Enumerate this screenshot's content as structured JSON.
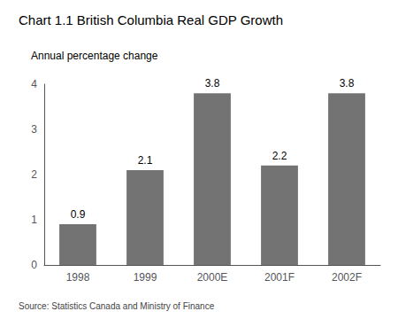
{
  "chart_data": {
    "type": "bar",
    "title": "Chart 1.1 British Columbia Real GDP Growth",
    "subtitle": "Annual percentage change",
    "source": "Source: Statistics Canada and Ministry of Finance",
    "categories": [
      "1998",
      "1999",
      "2000E",
      "2001F",
      "2002F"
    ],
    "values": [
      0.9,
      2.1,
      3.8,
      2.2,
      3.8
    ],
    "color": "#737373",
    "ylim": [
      0,
      4
    ],
    "yticks": [
      0,
      1,
      2,
      3,
      4
    ],
    "grid": false,
    "data_labels": true
  }
}
